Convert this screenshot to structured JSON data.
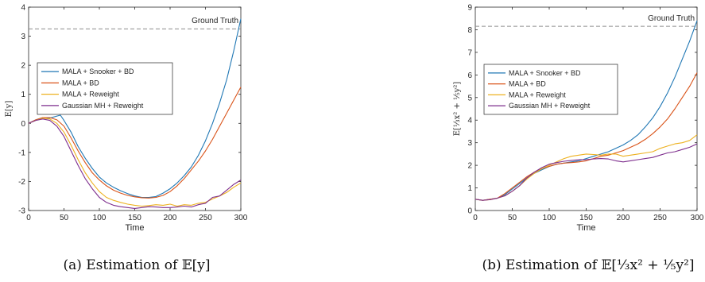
{
  "chart_data": [
    {
      "type": "line",
      "caption": "(a) Estimation of 𝔼[y]",
      "xlabel": "Time",
      "ylabel": "E[y]",
      "xlim": [
        0,
        300
      ],
      "ylim": [
        -3,
        4
      ],
      "xticks": [
        0,
        50,
        100,
        150,
        200,
        250,
        300
      ],
      "yticks": [
        -3,
        -2,
        -1,
        0,
        1,
        2,
        3,
        4
      ],
      "ground_truth": {
        "label": "Ground Truth",
        "value": 3.25
      },
      "legend": {
        "position": "left-middle"
      },
      "series": [
        {
          "name": "MALA + Snooker + BD",
          "color": "#1f77b4",
          "x": [
            0,
            10,
            20,
            30,
            40,
            45,
            50,
            60,
            70,
            80,
            90,
            100,
            110,
            120,
            130,
            140,
            150,
            160,
            170,
            180,
            190,
            200,
            210,
            220,
            230,
            240,
            250,
            260,
            270,
            280,
            290,
            300
          ],
          "y": [
            0,
            0.12,
            0.2,
            0.18,
            0.25,
            0.28,
            0.1,
            -0.3,
            -0.8,
            -1.2,
            -1.55,
            -1.85,
            -2.05,
            -2.2,
            -2.32,
            -2.42,
            -2.5,
            -2.55,
            -2.55,
            -2.52,
            -2.4,
            -2.25,
            -2.05,
            -1.8,
            -1.5,
            -1.1,
            -0.6,
            0,
            0.7,
            1.5,
            2.5,
            3.6
          ]
        },
        {
          "name": "MALA + BD",
          "color": "#d95319",
          "x": [
            0,
            10,
            20,
            30,
            40,
            50,
            60,
            70,
            80,
            90,
            100,
            110,
            120,
            130,
            140,
            150,
            160,
            170,
            180,
            190,
            200,
            210,
            220,
            230,
            240,
            250,
            260,
            270,
            280,
            290,
            300
          ],
          "y": [
            0,
            0.12,
            0.2,
            0.2,
            0.12,
            -0.1,
            -0.5,
            -0.95,
            -1.35,
            -1.7,
            -1.95,
            -2.15,
            -2.3,
            -2.4,
            -2.48,
            -2.53,
            -2.56,
            -2.57,
            -2.55,
            -2.48,
            -2.35,
            -2.15,
            -1.9,
            -1.6,
            -1.3,
            -0.95,
            -0.55,
            -0.1,
            0.35,
            0.8,
            1.25
          ]
        },
        {
          "name": "MALA + Reweight",
          "color": "#edb120",
          "x": [
            0,
            10,
            20,
            30,
            40,
            50,
            60,
            70,
            80,
            90,
            100,
            110,
            120,
            130,
            140,
            150,
            160,
            170,
            180,
            190,
            200,
            210,
            220,
            230,
            240,
            250,
            260,
            270,
            280,
            290,
            300
          ],
          "y": [
            0,
            0.1,
            0.18,
            0.15,
            0.0,
            -0.3,
            -0.75,
            -1.25,
            -1.7,
            -2.05,
            -2.35,
            -2.55,
            -2.65,
            -2.72,
            -2.78,
            -2.82,
            -2.85,
            -2.83,
            -2.8,
            -2.82,
            -2.78,
            -2.85,
            -2.8,
            -2.82,
            -2.75,
            -2.72,
            -2.6,
            -2.5,
            -2.38,
            -2.2,
            -2.05
          ]
        },
        {
          "name": "Gaussian MH + Reweight",
          "color": "#7e2f8e",
          "x": [
            0,
            10,
            20,
            30,
            40,
            50,
            60,
            70,
            80,
            90,
            100,
            110,
            120,
            130,
            140,
            150,
            160,
            170,
            180,
            190,
            200,
            210,
            220,
            230,
            240,
            250,
            260,
            270,
            280,
            290,
            300
          ],
          "y": [
            0,
            0.1,
            0.15,
            0.1,
            -0.1,
            -0.45,
            -0.95,
            -1.45,
            -1.9,
            -2.25,
            -2.55,
            -2.72,
            -2.82,
            -2.87,
            -2.9,
            -2.93,
            -2.9,
            -2.87,
            -2.88,
            -2.9,
            -2.9,
            -2.88,
            -2.85,
            -2.88,
            -2.8,
            -2.75,
            -2.55,
            -2.5,
            -2.3,
            -2.1,
            -1.95
          ]
        }
      ]
    },
    {
      "type": "line",
      "caption": "(b) Estimation of 𝔼[⅓x² + ⅕y²]",
      "xlabel": "Time",
      "ylabel": "E[⅓x² + ⅕y²]",
      "xlim": [
        0,
        300
      ],
      "ylim": [
        0,
        9
      ],
      "xticks": [
        0,
        50,
        100,
        150,
        200,
        250,
        300
      ],
      "yticks": [
        0,
        1,
        2,
        3,
        4,
        5,
        6,
        7,
        8,
        9
      ],
      "ground_truth": {
        "label": "Ground Truth",
        "value": 8.15
      },
      "legend": {
        "position": "left-middle"
      },
      "series": [
        {
          "name": "MALA + Snooker + BD",
          "color": "#1f77b4",
          "x": [
            0,
            10,
            20,
            30,
            40,
            50,
            60,
            70,
            80,
            90,
            100,
            110,
            120,
            130,
            140,
            150,
            160,
            170,
            180,
            190,
            200,
            210,
            220,
            230,
            240,
            250,
            260,
            270,
            280,
            290,
            300
          ],
          "y": [
            0.5,
            0.45,
            0.5,
            0.55,
            0.7,
            0.95,
            1.2,
            1.45,
            1.65,
            1.8,
            1.95,
            2.05,
            2.1,
            2.15,
            2.2,
            2.3,
            2.4,
            2.5,
            2.6,
            2.75,
            2.9,
            3.1,
            3.35,
            3.7,
            4.1,
            4.6,
            5.2,
            5.9,
            6.7,
            7.5,
            8.4
          ]
        },
        {
          "name": "MALA + BD",
          "color": "#d95319",
          "x": [
            0,
            10,
            20,
            30,
            40,
            50,
            60,
            70,
            80,
            90,
            100,
            110,
            120,
            130,
            140,
            150,
            160,
            170,
            180,
            190,
            200,
            210,
            220,
            230,
            240,
            250,
            260,
            270,
            280,
            290,
            300
          ],
          "y": [
            0.5,
            0.45,
            0.5,
            0.55,
            0.75,
            1.0,
            1.25,
            1.5,
            1.7,
            1.85,
            1.95,
            2.05,
            2.1,
            2.12,
            2.15,
            2.2,
            2.3,
            2.4,
            2.45,
            2.55,
            2.65,
            2.8,
            2.95,
            3.15,
            3.4,
            3.7,
            4.05,
            4.5,
            5.0,
            5.5,
            6.1
          ]
        },
        {
          "name": "MALA + Reweight",
          "color": "#edb120",
          "x": [
            0,
            10,
            20,
            30,
            40,
            50,
            60,
            70,
            80,
            90,
            100,
            110,
            120,
            130,
            140,
            150,
            160,
            170,
            180,
            190,
            200,
            210,
            220,
            230,
            240,
            250,
            260,
            270,
            280,
            290,
            300
          ],
          "y": [
            0.5,
            0.45,
            0.48,
            0.55,
            0.65,
            0.85,
            1.1,
            1.4,
            1.65,
            1.85,
            2.0,
            2.15,
            2.3,
            2.4,
            2.45,
            2.5,
            2.48,
            2.45,
            2.5,
            2.5,
            2.4,
            2.45,
            2.5,
            2.55,
            2.6,
            2.75,
            2.85,
            2.95,
            3.0,
            3.1,
            3.35
          ]
        },
        {
          "name": "Gaussian MH + Reweight",
          "color": "#7e2f8e",
          "x": [
            0,
            10,
            20,
            30,
            40,
            50,
            60,
            70,
            80,
            90,
            100,
            110,
            120,
            130,
            140,
            150,
            160,
            170,
            180,
            190,
            200,
            210,
            220,
            230,
            240,
            250,
            260,
            270,
            280,
            290,
            300
          ],
          "y": [
            0.5,
            0.45,
            0.48,
            0.55,
            0.65,
            0.85,
            1.1,
            1.45,
            1.7,
            1.9,
            2.05,
            2.12,
            2.18,
            2.22,
            2.25,
            2.25,
            2.28,
            2.3,
            2.28,
            2.2,
            2.15,
            2.2,
            2.25,
            2.3,
            2.35,
            2.45,
            2.55,
            2.6,
            2.7,
            2.8,
            2.95
          ]
        }
      ]
    }
  ]
}
